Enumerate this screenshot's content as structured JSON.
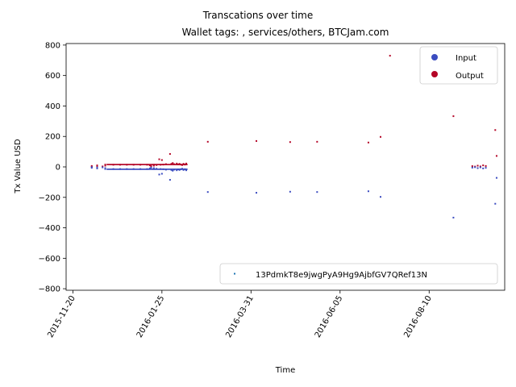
{
  "chart_data": {
    "type": "scatter",
    "title_line1": "Transcations over time",
    "title_line2": "Wallet tags: , services/others, BTCJam.com",
    "xlabel": "Time",
    "ylabel": "Tx Value USD",
    "x_range_days": [
      -5,
      320
    ],
    "ylim": [
      -810,
      810
    ],
    "y_ticks": [
      -800,
      -600,
      -400,
      -200,
      0,
      200,
      400,
      600,
      800
    ],
    "x_ticks": [
      {
        "day": 0,
        "label": "2015-11-20"
      },
      {
        "day": 66,
        "label": "2016-01-25"
      },
      {
        "day": 132,
        "label": "2016-03-31"
      },
      {
        "day": 198,
        "label": "2016-06-05"
      },
      {
        "day": 264,
        "label": "2016-08-10"
      }
    ],
    "x_axis_start_date": "2015-11-20",
    "legend_color": {
      "title": "",
      "location": "upper right",
      "entries": [
        {
          "label": "Input",
          "color": "#3b4cc0"
        },
        {
          "label": "Output",
          "color": "#b40426"
        }
      ]
    },
    "legend_wallet": {
      "location": "lower right",
      "entries": [
        {
          "label": "13PdmkT8e9jwgPyA9Hg9AjbfGV7QRef13N",
          "color": "#1f77b4"
        }
      ]
    },
    "series": [
      {
        "name": "Output",
        "color": "#b40426",
        "points": [
          [
            14,
            6
          ],
          [
            14,
            2
          ],
          [
            18,
            10
          ],
          [
            18,
            4
          ],
          [
            22,
            3
          ],
          [
            24,
            8
          ],
          [
            24,
            15
          ],
          [
            30,
            14
          ],
          [
            35,
            14
          ],
          [
            40,
            14
          ],
          [
            45,
            14
          ],
          [
            50,
            14
          ],
          [
            55,
            14
          ],
          [
            60,
            14
          ],
          [
            65,
            14
          ],
          [
            57,
            10
          ],
          [
            58,
            5
          ],
          [
            60,
            8
          ],
          [
            62,
            12
          ],
          [
            64,
            50
          ],
          [
            66,
            45
          ],
          [
            67,
            15
          ],
          [
            69,
            18
          ],
          [
            72,
            85
          ],
          [
            73,
            20
          ],
          [
            74,
            25
          ],
          [
            75,
            18
          ],
          [
            77,
            22
          ],
          [
            78,
            16
          ],
          [
            79,
            20
          ],
          [
            80,
            15
          ],
          [
            81,
            12
          ],
          [
            82,
            20
          ],
          [
            83,
            15
          ],
          [
            84,
            18
          ],
          [
            84,
            22
          ],
          [
            100,
            165
          ],
          [
            136,
            170
          ],
          [
            161,
            163
          ],
          [
            181,
            165
          ],
          [
            219,
            160
          ],
          [
            228,
            197
          ],
          [
            235,
            730
          ],
          [
            282,
            333
          ],
          [
            296,
            5
          ],
          [
            298,
            2
          ],
          [
            300,
            8
          ],
          [
            302,
            3
          ],
          [
            304,
            10
          ],
          [
            306,
            6
          ],
          [
            313,
            242
          ],
          [
            314,
            72
          ]
        ]
      },
      {
        "name": "Input",
        "color": "#3b4cc0",
        "points": [
          [
            14,
            -6
          ],
          [
            14,
            -2
          ],
          [
            18,
            -10
          ],
          [
            18,
            -4
          ],
          [
            22,
            -3
          ],
          [
            24,
            -8
          ],
          [
            24,
            -14
          ],
          [
            30,
            -14
          ],
          [
            35,
            -14
          ],
          [
            40,
            -14
          ],
          [
            45,
            -14
          ],
          [
            50,
            -14
          ],
          [
            55,
            -14
          ],
          [
            60,
            -14
          ],
          [
            65,
            -14
          ],
          [
            57,
            -10
          ],
          [
            58,
            -5
          ],
          [
            60,
            -8
          ],
          [
            62,
            -12
          ],
          [
            64,
            -50
          ],
          [
            66,
            -45
          ],
          [
            67,
            -15
          ],
          [
            69,
            -18
          ],
          [
            72,
            -85
          ],
          [
            73,
            -20
          ],
          [
            74,
            -25
          ],
          [
            75,
            -18
          ],
          [
            77,
            -22
          ],
          [
            78,
            -16
          ],
          [
            79,
            -20
          ],
          [
            80,
            -15
          ],
          [
            81,
            -12
          ],
          [
            82,
            -20
          ],
          [
            83,
            -15
          ],
          [
            84,
            -18
          ],
          [
            84,
            -22
          ],
          [
            100,
            -165
          ],
          [
            136,
            -170
          ],
          [
            161,
            -163
          ],
          [
            181,
            -165
          ],
          [
            219,
            -160
          ],
          [
            228,
            -197
          ],
          [
            282,
            -333
          ],
          [
            296,
            -5
          ],
          [
            298,
            -2
          ],
          [
            300,
            -8
          ],
          [
            302,
            -3
          ],
          [
            304,
            -10
          ],
          [
            306,
            -6
          ],
          [
            313,
            -242
          ],
          [
            314,
            -72
          ]
        ]
      }
    ],
    "dense_bands": [
      {
        "series": "Output",
        "color": "#b40426",
        "x_from": 25,
        "x_to": 85,
        "y_from": 11,
        "y_to": 20
      },
      {
        "series": "Input",
        "color": "#3b4cc0",
        "x_from": 25,
        "x_to": 85,
        "y_from": -20,
        "y_to": -11
      }
    ]
  }
}
